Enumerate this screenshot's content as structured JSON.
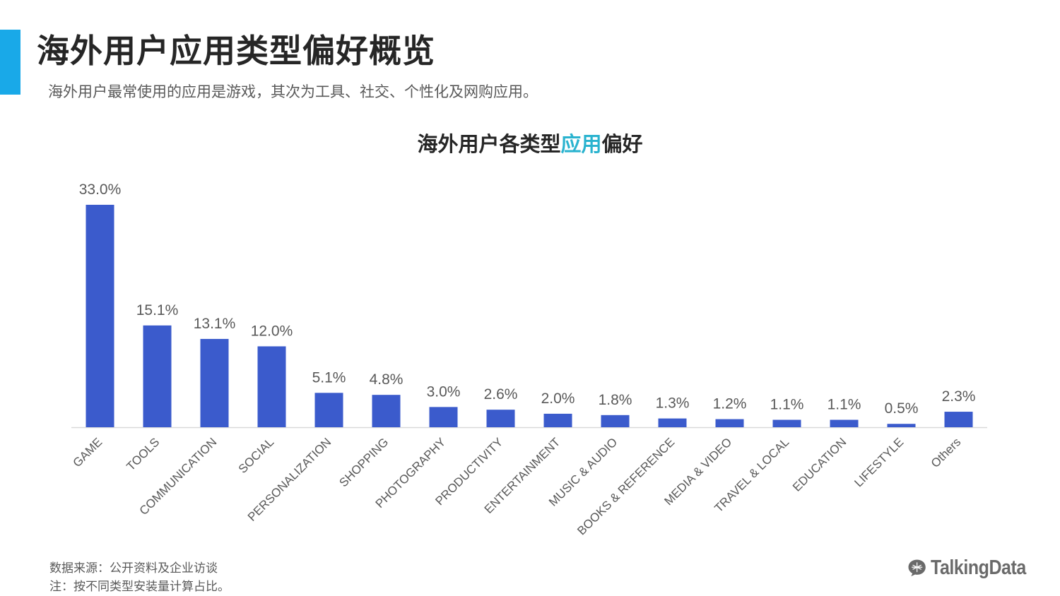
{
  "header": {
    "title": "海外用户应用类型偏好概览",
    "subtitle": "海外用户最常使用的应用是游戏，其次为工具、社交、个性化及网购应用。"
  },
  "chart_title": {
    "part1": "海外用户各类型",
    "highlight": "应用",
    "part2": "偏好"
  },
  "colors": {
    "bar": "#3b5bcc",
    "accent": "#19a9e8",
    "highlight": "#2ab3cf",
    "label": "#595959"
  },
  "chart_data": {
    "type": "bar",
    "title": "海外用户各类型应用偏好",
    "categories": [
      "GAME",
      "TOOLS",
      "COMMUNICATION",
      "SOCIAL",
      "PERSONALIZATION",
      "SHOPPING",
      "PHOTOGRAPHY",
      "PRODUCTIVITY",
      "ENTERTAINMENT",
      "MUSIC & AUDIO",
      "BOOKS & REFERENCE",
      "MEDIA & VIDEO",
      "TRAVEL & LOCAL",
      "EDUCATION",
      "LIFESTYLE",
      "Others"
    ],
    "values": [
      33.0,
      15.1,
      13.1,
      12.0,
      5.1,
      4.8,
      3.0,
      2.6,
      2.0,
      1.8,
      1.3,
      1.2,
      1.1,
      1.1,
      0.5,
      2.3
    ],
    "value_labels": [
      "33.0%",
      "15.1%",
      "13.1%",
      "12.0%",
      "5.1%",
      "4.8%",
      "3.0%",
      "2.6%",
      "2.0%",
      "1.8%",
      "1.3%",
      "1.2%",
      "1.1%",
      "1.1%",
      "0.5%",
      "2.3%"
    ],
    "unit": "%",
    "ylim": [
      0,
      33
    ],
    "grid": false,
    "legend": "none"
  },
  "footer": {
    "source": "数据来源：公开资料及企业访谈",
    "note": "注：按不同类型安装量计算占比。",
    "logo": "TalkingData"
  }
}
